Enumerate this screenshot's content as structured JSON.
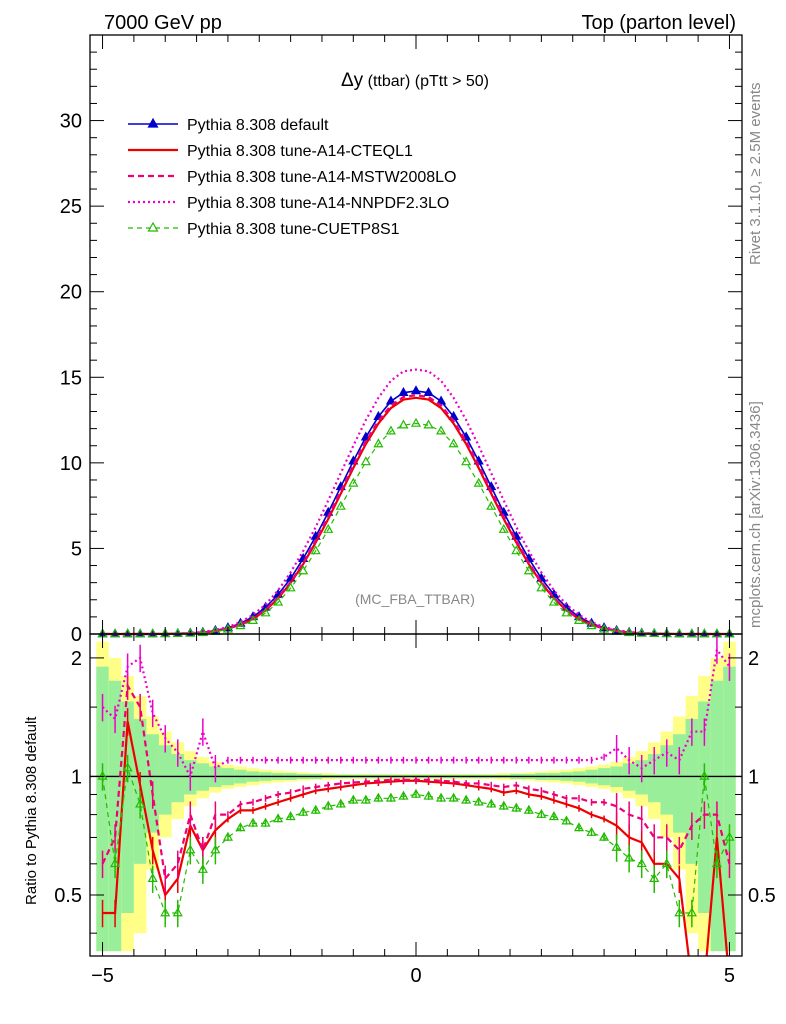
{
  "header": {
    "left": "7000 GeV pp",
    "right": "Top (parton level)"
  },
  "side_text": {
    "rivet": "Rivet 3.1.10, ≥ 2.5M events",
    "mcplots": "mcplots.cern.ch [arXiv:1306.3436]"
  },
  "chart_data": [
    {
      "type": "line",
      "title_symbol": "Δy",
      "title_rest": " (ttbar) (pTtt > 50)",
      "watermark": "(MC_FBA_TTBAR)",
      "xlim": [
        -5.2,
        5.2
      ],
      "ylim": [
        0,
        35
      ],
      "y_ticks": [
        0,
        5,
        10,
        15,
        20,
        25,
        30
      ],
      "legend_position": "top-left",
      "x": [
        -5.0,
        -4.8,
        -4.6,
        -4.4,
        -4.2,
        -4.0,
        -3.8,
        -3.6,
        -3.4,
        -3.2,
        -3.0,
        -2.8,
        -2.6,
        -2.4,
        -2.2,
        -2.0,
        -1.8,
        -1.6,
        -1.4,
        -1.2,
        -1.0,
        -0.8,
        -0.6,
        -0.4,
        -0.2,
        0.0,
        0.2,
        0.4,
        0.6,
        0.8,
        1.0,
        1.2,
        1.4,
        1.6,
        1.8,
        2.0,
        2.2,
        2.4,
        2.6,
        2.8,
        3.0,
        3.2,
        3.4,
        3.6,
        3.8,
        4.0,
        4.2,
        4.4,
        4.6,
        4.8,
        5.0
      ],
      "series": [
        {
          "name": "Pythia 8.308 default",
          "color": "#0000cc",
          "style": "solid-triangle",
          "values": [
            0.0,
            0.0,
            0.0,
            0.0,
            0.0,
            0.01,
            0.02,
            0.05,
            0.1,
            0.2,
            0.36,
            0.62,
            1.0,
            1.55,
            2.3,
            3.25,
            4.4,
            5.7,
            7.1,
            8.6,
            10.1,
            11.5,
            12.7,
            13.6,
            14.1,
            14.2,
            14.1,
            13.6,
            12.7,
            11.5,
            10.1,
            8.6,
            7.1,
            5.7,
            4.4,
            3.25,
            2.3,
            1.55,
            1.0,
            0.62,
            0.36,
            0.2,
            0.1,
            0.05,
            0.02,
            0.01,
            0.0,
            0.0,
            0.0,
            0.0,
            0.0
          ]
        },
        {
          "name": "Pythia 8.308 tune-A14-CTEQL1",
          "color": "#ee0000",
          "style": "solid",
          "values": [
            0.0,
            0.0,
            0.0,
            0.0,
            0.0,
            0.01,
            0.02,
            0.04,
            0.08,
            0.17,
            0.31,
            0.54,
            0.88,
            1.38,
            2.08,
            2.98,
            4.08,
            5.35,
            6.72,
            8.2,
            9.7,
            11.1,
            12.3,
            13.2,
            13.7,
            13.8,
            13.7,
            13.2,
            12.3,
            11.1,
            9.7,
            8.2,
            6.72,
            5.35,
            4.08,
            2.98,
            2.08,
            1.38,
            0.88,
            0.54,
            0.31,
            0.17,
            0.08,
            0.04,
            0.02,
            0.01,
            0.0,
            0.0,
            0.0,
            0.0,
            0.0
          ]
        },
        {
          "name": "Pythia 8.308 tune-A14-MSTW2008LO",
          "color": "#ee0077",
          "style": "dashed",
          "values": [
            0.0,
            0.0,
            0.0,
            0.0,
            0.0,
            0.01,
            0.02,
            0.04,
            0.08,
            0.17,
            0.31,
            0.55,
            0.9,
            1.41,
            2.12,
            3.03,
            4.15,
            5.45,
            6.85,
            8.35,
            9.85,
            11.25,
            12.45,
            13.35,
            13.85,
            13.95,
            13.85,
            13.35,
            12.45,
            11.25,
            9.85,
            8.35,
            6.85,
            5.45,
            4.15,
            3.03,
            2.12,
            1.41,
            0.9,
            0.55,
            0.31,
            0.17,
            0.08,
            0.04,
            0.02,
            0.01,
            0.0,
            0.0,
            0.0,
            0.0,
            0.0
          ]
        },
        {
          "name": "Pythia 8.308 tune-A14-NNPDF2.3LO",
          "color": "#ee00cc",
          "style": "dotted",
          "values": [
            0.0,
            0.0,
            0.0,
            0.0,
            0.0,
            0.01,
            0.02,
            0.06,
            0.12,
            0.23,
            0.41,
            0.7,
            1.12,
            1.72,
            2.55,
            3.6,
            4.85,
            6.25,
            7.8,
            9.4,
            11.0,
            12.5,
            13.8,
            14.8,
            15.35,
            15.45,
            15.35,
            14.8,
            13.8,
            12.5,
            11.0,
            9.4,
            7.8,
            6.25,
            4.85,
            3.6,
            2.55,
            1.72,
            1.12,
            0.7,
            0.41,
            0.23,
            0.12,
            0.06,
            0.02,
            0.01,
            0.0,
            0.0,
            0.0,
            0.0,
            0.0
          ]
        },
        {
          "name": "Pythia 8.308 tune-CUETP8S1",
          "color": "#22bb00",
          "style": "dashed-open-triangle",
          "values": [
            0.0,
            0.0,
            0.0,
            0.0,
            0.0,
            0.01,
            0.02,
            0.03,
            0.07,
            0.14,
            0.27,
            0.47,
            0.78,
            1.22,
            1.85,
            2.68,
            3.68,
            4.85,
            6.1,
            7.45,
            8.8,
            10.05,
            11.1,
            11.85,
            12.2,
            12.3,
            12.2,
            11.85,
            11.1,
            10.05,
            8.8,
            7.45,
            6.1,
            4.85,
            3.68,
            2.68,
            1.85,
            1.22,
            0.78,
            0.47,
            0.27,
            0.14,
            0.07,
            0.03,
            0.02,
            0.01,
            0.0,
            0.0,
            0.0,
            0.0,
            0.0
          ]
        }
      ]
    },
    {
      "type": "line",
      "ylabel": "Ratio to Pythia 8.308 default",
      "xlim": [
        -5.2,
        5.2
      ],
      "ylim": [
        0.35,
        2.3
      ],
      "x_ticks": [
        -5,
        0,
        5
      ],
      "y_ticks": [
        0.5,
        1,
        2
      ],
      "x": [
        -5.0,
        -4.8,
        -4.6,
        -4.4,
        -4.2,
        -4.0,
        -3.8,
        -3.6,
        -3.4,
        -3.2,
        -3.0,
        -2.8,
        -2.6,
        -2.4,
        -2.2,
        -2.0,
        -1.8,
        -1.6,
        -1.4,
        -1.2,
        -1.0,
        -0.8,
        -0.6,
        -0.4,
        -0.2,
        0.0,
        0.2,
        0.4,
        0.6,
        0.8,
        1.0,
        1.2,
        1.4,
        1.6,
        1.8,
        2.0,
        2.2,
        2.4,
        2.6,
        2.8,
        3.0,
        3.2,
        3.4,
        3.6,
        3.8,
        4.0,
        4.2,
        4.4,
        4.6,
        4.8,
        5.0
      ],
      "band_green_halfwidth": [
        0.9,
        0.75,
        0.55,
        0.4,
        0.28,
        0.2,
        0.14,
        0.1,
        0.08,
        0.06,
        0.05,
        0.04,
        0.03,
        0.025,
        0.02,
        0.02,
        0.015,
        0.015,
        0.01,
        0.01,
        0.01,
        0.01,
        0.01,
        0.01,
        0.01,
        0.01,
        0.01,
        0.01,
        0.01,
        0.01,
        0.01,
        0.01,
        0.01,
        0.015,
        0.015,
        0.02,
        0.02,
        0.025,
        0.03,
        0.04,
        0.05,
        0.06,
        0.08,
        0.1,
        0.14,
        0.2,
        0.28,
        0.4,
        0.55,
        0.75,
        0.9
      ],
      "band_yellow_halfwidth": [
        1.2,
        1.0,
        0.8,
        0.6,
        0.42,
        0.3,
        0.22,
        0.16,
        0.12,
        0.09,
        0.07,
        0.06,
        0.05,
        0.04,
        0.035,
        0.03,
        0.025,
        0.02,
        0.02,
        0.015,
        0.015,
        0.015,
        0.015,
        0.015,
        0.015,
        0.015,
        0.015,
        0.015,
        0.015,
        0.015,
        0.015,
        0.015,
        0.02,
        0.02,
        0.025,
        0.03,
        0.035,
        0.04,
        0.05,
        0.06,
        0.07,
        0.09,
        0.12,
        0.16,
        0.22,
        0.3,
        0.42,
        0.6,
        0.8,
        1.0,
        1.2
      ],
      "series": [
        {
          "name": "Pythia 8.308 tune-A14-CTEQL1",
          "color": "#ee0000",
          "style": "solid",
          "values": [
            0.45,
            0.45,
            1.38,
            0.95,
            0.65,
            0.5,
            0.55,
            0.75,
            0.65,
            0.73,
            0.78,
            0.82,
            0.82,
            0.84,
            0.86,
            0.88,
            0.9,
            0.92,
            0.93,
            0.94,
            0.95,
            0.96,
            0.965,
            0.97,
            0.975,
            0.975,
            0.97,
            0.965,
            0.96,
            0.95,
            0.94,
            0.93,
            0.91,
            0.92,
            0.9,
            0.89,
            0.87,
            0.85,
            0.83,
            0.8,
            0.78,
            0.75,
            0.7,
            0.68,
            0.6,
            0.6,
            0.55,
            0.3,
            0.3,
            0.7,
            0.3
          ]
        },
        {
          "name": "Pythia 8.308 tune-A14-MSTW2008LO",
          "color": "#ee0077",
          "style": "dashed",
          "values": [
            0.6,
            0.7,
            1.7,
            1.5,
            0.9,
            0.55,
            0.6,
            0.8,
            0.65,
            0.8,
            0.8,
            0.85,
            0.86,
            0.88,
            0.9,
            0.91,
            0.93,
            0.94,
            0.95,
            0.96,
            0.965,
            0.97,
            0.975,
            0.98,
            0.98,
            0.98,
            0.98,
            0.975,
            0.97,
            0.96,
            0.96,
            0.95,
            0.94,
            0.95,
            0.93,
            0.92,
            0.9,
            0.88,
            0.88,
            0.86,
            0.86,
            0.84,
            0.8,
            0.78,
            0.7,
            0.7,
            0.65,
            0.75,
            0.8,
            0.8,
            0.6
          ]
        },
        {
          "name": "Pythia 8.308 tune-A14-NNPDF2.3LO",
          "color": "#ee00cc",
          "style": "dotted",
          "values": [
            1.5,
            1.4,
            1.9,
            2.0,
            1.45,
            1.25,
            1.15,
            1.0,
            1.3,
            1.05,
            1.1,
            1.1,
            1.1,
            1.1,
            1.1,
            1.1,
            1.1,
            1.1,
            1.1,
            1.1,
            1.1,
            1.1,
            1.1,
            1.1,
            1.1,
            1.1,
            1.1,
            1.1,
            1.1,
            1.1,
            1.1,
            1.1,
            1.1,
            1.1,
            1.1,
            1.1,
            1.1,
            1.1,
            1.1,
            1.1,
            1.12,
            1.18,
            1.1,
            1.05,
            1.1,
            1.15,
            1.1,
            1.3,
            1.3,
            2.1,
            1.9
          ]
        },
        {
          "name": "Pythia 8.308 tune-CUETP8S1",
          "color": "#22bb00",
          "style": "dashed-open-triangle",
          "values": [
            1.0,
            0.6,
            1.05,
            0.85,
            0.55,
            0.45,
            0.45,
            0.65,
            0.58,
            0.65,
            0.7,
            0.74,
            0.76,
            0.76,
            0.78,
            0.79,
            0.81,
            0.82,
            0.84,
            0.85,
            0.87,
            0.87,
            0.88,
            0.88,
            0.89,
            0.9,
            0.89,
            0.88,
            0.88,
            0.87,
            0.86,
            0.85,
            0.84,
            0.83,
            0.82,
            0.8,
            0.79,
            0.77,
            0.74,
            0.72,
            0.7,
            0.66,
            0.62,
            0.6,
            0.55,
            0.6,
            0.45,
            0.45,
            1.0,
            0.6,
            0.7
          ]
        }
      ]
    }
  ]
}
